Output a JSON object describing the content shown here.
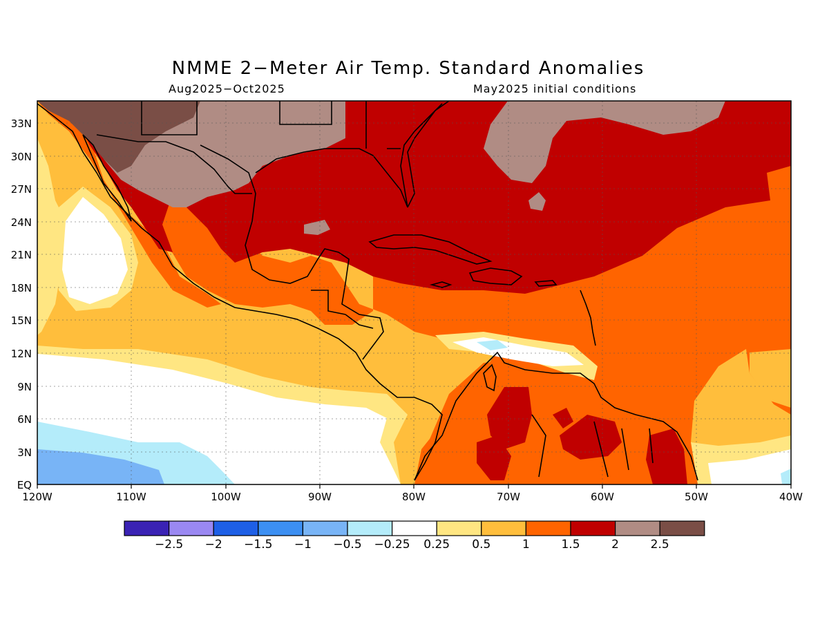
{
  "title": "NMME 2−Meter Air Temp. Standard Anomalies",
  "subtitle_left": "Aug2025−Oct2025",
  "subtitle_right": "May2025 initial conditions",
  "axes": {
    "lon_labels": [
      "120W",
      "110W",
      "100W",
      "90W",
      "80W",
      "70W",
      "60W",
      "50W",
      "40W"
    ],
    "lat_labels": [
      "EQ",
      "3N",
      "6N",
      "9N",
      "12N",
      "15N",
      "18N",
      "21N",
      "24N",
      "27N",
      "30N",
      "33N"
    ]
  },
  "colorbar": {
    "colors": [
      "#3a22b4",
      "#9a88f2",
      "#1e5fe6",
      "#3c8ff2",
      "#78b4f6",
      "#b4ecfa",
      "#ffffff",
      "#ffe682",
      "#ffbe3c",
      "#ff6400",
      "#c00000",
      "#b08c84",
      "#7a4e46"
    ],
    "tick_labels": [
      "−2.5",
      "−2",
      "−1.5",
      "−1",
      "−0.5",
      "−0.25",
      "0.25",
      "0.5",
      "1",
      "1.5",
      "2",
      "2.5"
    ]
  }
}
